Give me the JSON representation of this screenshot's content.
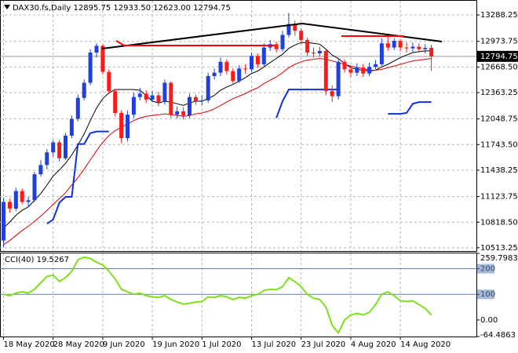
{
  "chart_data": [
    {
      "type": "candlestick",
      "title": "DAX30.fs,Daily  12895.75 12933.50 12623.00 12794.75",
      "categories": [
        "18 May 2020",
        null,
        null,
        null,
        null,
        null,
        null,
        null,
        "28 May 2020",
        null,
        null,
        null,
        null,
        null,
        null,
        null,
        "9 Jun 2020",
        null,
        null,
        null,
        null,
        null,
        null,
        null,
        "19 Jun 2020",
        null,
        null,
        null,
        null,
        null,
        null,
        null,
        "1 Jul 2020",
        null,
        null,
        null,
        null,
        null,
        null,
        null,
        "13 Jul 2020",
        null,
        null,
        null,
        null,
        null,
        null,
        null,
        "23 Jul 2020",
        null,
        null,
        null,
        null,
        null,
        null,
        null,
        "4 Aug 2020",
        null,
        null,
        null,
        null,
        null,
        null,
        null,
        "14 Aug 2020",
        null,
        null,
        null,
        null,
        null
      ],
      "open": [
        10600,
        11060,
        10980,
        11190,
        11060,
        11080,
        11390,
        11500,
        11650,
        11770,
        11580,
        11850,
        12050,
        12300,
        12480,
        12840,
        12920,
        12610,
        12380,
        12120,
        11820,
        12100,
        12310,
        12350,
        12280,
        12330,
        12250,
        12480,
        12100,
        12140,
        12090,
        12310,
        12260,
        12270,
        12560,
        12600,
        12730,
        12620,
        12500,
        12650,
        12640,
        12800,
        12700,
        12900,
        12940,
        12880,
        13050,
        13180,
        13100,
        12990,
        12840,
        12830,
        12860,
        12380,
        12320,
        12730,
        12640,
        12600,
        12660,
        12590,
        12670,
        12700,
        12950,
        12900,
        12980,
        12900,
        12890,
        12910,
        12880,
        12895.75
      ],
      "high": [
        11110,
        11100,
        11230,
        11220,
        11120,
        11420,
        11560,
        11690,
        11800,
        11800,
        11880,
        12090,
        12340,
        12520,
        12880,
        12950,
        12940,
        12640,
        12400,
        12150,
        12150,
        12360,
        12420,
        12390,
        12380,
        12370,
        12520,
        12500,
        12200,
        12190,
        12350,
        12340,
        12330,
        12600,
        12650,
        12780,
        12760,
        12650,
        12690,
        12700,
        12840,
        12830,
        12950,
        12990,
        12970,
        13100,
        13310,
        13220,
        13130,
        13020,
        12900,
        12910,
        12880,
        12450,
        12770,
        12760,
        12680,
        12710,
        12700,
        12720,
        12750,
        13010,
        13050,
        13010,
        13000,
        12960,
        12960,
        12950,
        12940,
        12933.5
      ],
      "low": [
        10520,
        10930,
        10950,
        11030,
        11000,
        11060,
        11360,
        11450,
        11600,
        11540,
        11560,
        11820,
        12020,
        12270,
        12450,
        12780,
        12580,
        12350,
        12080,
        11760,
        11780,
        12060,
        12270,
        12240,
        12250,
        12200,
        12220,
        12060,
        12050,
        12040,
        12060,
        12220,
        12210,
        12240,
        12520,
        12560,
        12580,
        12470,
        12480,
        12590,
        12610,
        12660,
        12680,
        12860,
        12840,
        12850,
        13020,
        13040,
        12940,
        12800,
        12780,
        12790,
        12330,
        12250,
        12280,
        12600,
        12550,
        12560,
        12550,
        12560,
        12640,
        12680,
        12860,
        12870,
        12850,
        12840,
        12850,
        12840,
        12830,
        12623
      ],
      "close": [
        11060,
        10980,
        11190,
        11060,
        11080,
        11390,
        11500,
        11650,
        11770,
        11580,
        11850,
        12050,
        12300,
        12480,
        12840,
        12920,
        12610,
        12380,
        12120,
        11820,
        12100,
        12310,
        12350,
        12280,
        12330,
        12250,
        12480,
        12100,
        12140,
        12090,
        12310,
        12260,
        12270,
        12560,
        12600,
        12730,
        12620,
        12500,
        12650,
        12640,
        12800,
        12700,
        12900,
        12940,
        12880,
        13050,
        13180,
        13100,
        12990,
        12840,
        12830,
        12860,
        12380,
        12320,
        12730,
        12640,
        12600,
        12660,
        12590,
        12670,
        12700,
        12950,
        12900,
        12980,
        12900,
        12890,
        12910,
        12880,
        12895.75,
        12794.75
      ],
      "up_color": "#1f3fe0",
      "down_color": "#ff1a1a",
      "series": [
        {
          "color": "#000000",
          "values": [
            10750,
            10820,
            10900,
            10960,
            11000,
            11080,
            11160,
            11260,
            11370,
            11440,
            11520,
            11620,
            11740,
            11870,
            12030,
            12180,
            12290,
            12360,
            12400,
            12400,
            12400,
            12400,
            12390,
            12330,
            12260,
            12240,
            12260,
            12250,
            12230,
            12210,
            12240,
            12260,
            12260,
            12290,
            12330,
            12390,
            12430,
            12460,
            12500,
            12540,
            12590,
            12620,
            12670,
            12720,
            12770,
            12820,
            12890,
            12930,
            12960,
            12960,
            12950,
            12940,
            12880,
            12810,
            12770,
            12710,
            12660,
            12640,
            12630,
            12620,
            12630,
            12670,
            12700,
            12740,
            12780,
            12810,
            12840,
            12850,
            12860,
            12860
          ]
        },
        {
          "color": "#e00000",
          "values": [
            10550,
            10600,
            10660,
            10720,
            10770,
            10830,
            10890,
            10960,
            11030,
            11100,
            11170,
            11260,
            11350,
            11450,
            11560,
            11670,
            11770,
            11850,
            11910,
            11950,
            11990,
            12030,
            12060,
            12080,
            12090,
            12100,
            12110,
            12100,
            12090,
            12080,
            12090,
            12110,
            12120,
            12140,
            12170,
            12210,
            12250,
            12290,
            12320,
            12350,
            12390,
            12420,
            12470,
            12510,
            12550,
            12600,
            12660,
            12700,
            12730,
            12750,
            12760,
            12770,
            12760,
            12740,
            12720,
            12700,
            12680,
            12660,
            12650,
            12630,
            12630,
            12640,
            12660,
            12680,
            12700,
            12720,
            12740,
            12750,
            12760,
            12770
          ]
        },
        {
          "color": "#1030e0",
          "values": [
            null,
            null,
            null,
            null,
            null,
            null,
            null,
            10800,
            10850,
            11050,
            11120,
            11120,
            11750,
            11750,
            11880,
            11900,
            11900,
            11900,
            null,
            null,
            null,
            null,
            null,
            null,
            null,
            null,
            null,
            null,
            null,
            null,
            null,
            null,
            null,
            null,
            null,
            null,
            null,
            null,
            null,
            null,
            null,
            null,
            null,
            null,
            12060,
            12260,
            12400,
            12400,
            12400,
            12400,
            12400,
            12400,
            12400,
            12400,
            12400,
            null,
            null,
            null,
            null,
            null,
            null,
            null,
            12110,
            12110,
            12110,
            12120,
            12230,
            12250,
            12250,
            12250
          ]
        }
      ],
      "last_price": 12794.75,
      "ylim": [
        10475,
        13457
      ],
      "yticks": [
        13288.25,
        12973.75,
        {
          "value": 12668.5,
          "label": "12668.50"
        },
        12363.25,
        12048.75,
        {
          "value": 11743.5,
          "label": "11743.50"
        },
        11438.25,
        11123.75,
        {
          "value": 10818.5,
          "label": "10818.50"
        },
        10513.25
      ],
      "grid": true
    },
    {
      "type": "line",
      "title": "CCI(40) 19.5267",
      "color": "#7ee01c",
      "values": [
        100,
        95,
        105,
        110,
        105,
        120,
        145,
        170,
        175,
        150,
        165,
        190,
        235,
        245,
        240,
        225,
        215,
        190,
        160,
        120,
        110,
        100,
        105,
        95,
        90,
        88,
        95,
        80,
        70,
        62,
        65,
        70,
        72,
        90,
        88,
        95,
        90,
        80,
        88,
        85,
        95,
        100,
        115,
        120,
        118,
        130,
        165,
        150,
        130,
        100,
        85,
        80,
        50,
        -20,
        -50,
        0,
        20,
        25,
        20,
        30,
        60,
        100,
        110,
        95,
        75,
        72,
        75,
        60,
        45,
        19.5267
      ],
      "levels": [
        200,
        100
      ],
      "level_color": "#5a82b4",
      "ylim": [
        -64.4863,
        259.7983
      ],
      "yticks": [
        259.7983,
        200,
        100,
        {
          "value": 0,
          "label": "0.00"
        },
        -64.4863
      ]
    }
  ]
}
